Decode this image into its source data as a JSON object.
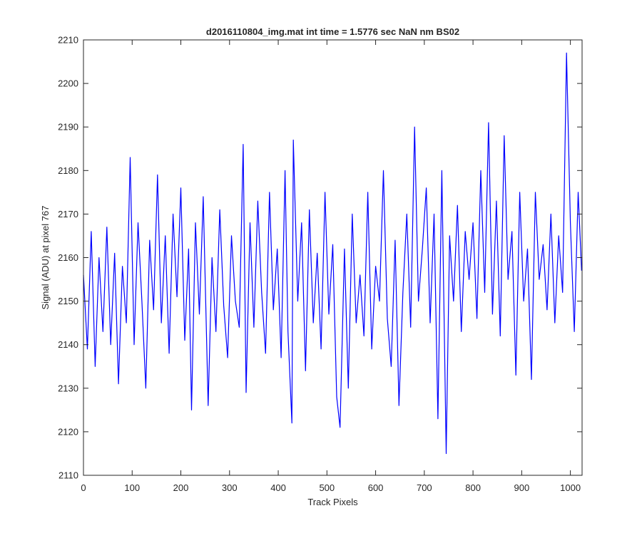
{
  "chart_data": {
    "type": "line",
    "title": "d2016110804_img.mat int time = 1.5776 sec  NaN nm BS02",
    "xlabel": "Track Pixels",
    "ylabel": "Signal (ADU) at pixel 767",
    "xlim": [
      0,
      1024
    ],
    "ylim": [
      2110,
      2210
    ],
    "x_ticks": [
      0,
      100,
      200,
      300,
      400,
      500,
      600,
      700,
      800,
      900,
      1000
    ],
    "y_ticks": [
      2110,
      2120,
      2130,
      2140,
      2150,
      2160,
      2170,
      2180,
      2190,
      2200,
      2210
    ],
    "grid": false,
    "legend": "none",
    "series_color": "#0000ff",
    "series": [
      {
        "x": [
          0,
          8,
          16,
          24,
          32,
          40,
          48,
          56,
          64,
          72,
          80,
          88,
          96,
          104,
          112,
          120,
          128,
          136,
          144,
          152,
          160,
          168,
          176,
          184,
          192,
          200,
          208,
          216,
          222,
          230,
          238,
          246,
          256,
          264,
          272,
          280,
          288,
          296,
          304,
          312,
          320,
          328,
          334,
          342,
          350,
          358,
          366,
          374,
          382,
          390,
          398,
          406,
          414,
          420,
          428,
          431,
          440,
          448,
          456,
          464,
          472,
          480,
          488,
          496,
          504,
          512,
          520,
          527,
          536,
          544,
          552,
          560,
          568,
          576,
          584,
          592,
          600,
          608,
          616,
          624,
          632,
          640,
          648,
          656,
          664,
          672,
          680,
          688,
          696,
          704,
          712,
          720,
          728,
          736,
          745,
          752,
          760,
          768,
          776,
          784,
          792,
          800,
          808,
          816,
          824,
          832,
          840,
          848,
          856,
          864,
          872,
          880,
          888,
          896,
          904,
          912,
          920,
          928,
          936,
          944,
          952,
          960,
          968,
          976,
          984,
          992,
          1000,
          1008,
          1016,
          1023
        ],
        "values": [
          2156,
          2139,
          2166,
          2135,
          2160,
          2143,
          2167,
          2140,
          2161,
          2131,
          2158,
          2145,
          2183,
          2140,
          2168,
          2150,
          2130,
          2164,
          2148,
          2179,
          2145,
          2165,
          2138,
          2170,
          2151,
          2176,
          2141,
          2162,
          2125,
          2168,
          2147,
          2174,
          2126,
          2160,
          2143,
          2171,
          2149,
          2137,
          2165,
          2150,
          2144,
          2186,
          2129,
          2168,
          2144,
          2173,
          2152,
          2138,
          2175,
          2148,
          2162,
          2137,
          2180,
          2143,
          2122,
          2187,
          2150,
          2168,
          2134,
          2171,
          2145,
          2161,
          2139,
          2175,
          2147,
          2163,
          2128,
          2121,
          2162,
          2130,
          2170,
          2145,
          2156,
          2142,
          2175,
          2139,
          2158,
          2150,
          2180,
          2146,
          2135,
          2164,
          2126,
          2152,
          2170,
          2144,
          2190,
          2150,
          2162,
          2176,
          2145,
          2170,
          2123,
          2180,
          2115,
          2165,
          2150,
          2172,
          2143,
          2166,
          2155,
          2168,
          2146,
          2180,
          2152,
          2191,
          2147,
          2173,
          2142,
          2188,
          2155,
          2166,
          2133,
          2175,
          2150,
          2162,
          2132,
          2175,
          2155,
          2163,
          2148,
          2170,
          2145,
          2165,
          2152,
          2207,
          2168,
          2143,
          2175,
          2157
        ]
      }
    ]
  }
}
